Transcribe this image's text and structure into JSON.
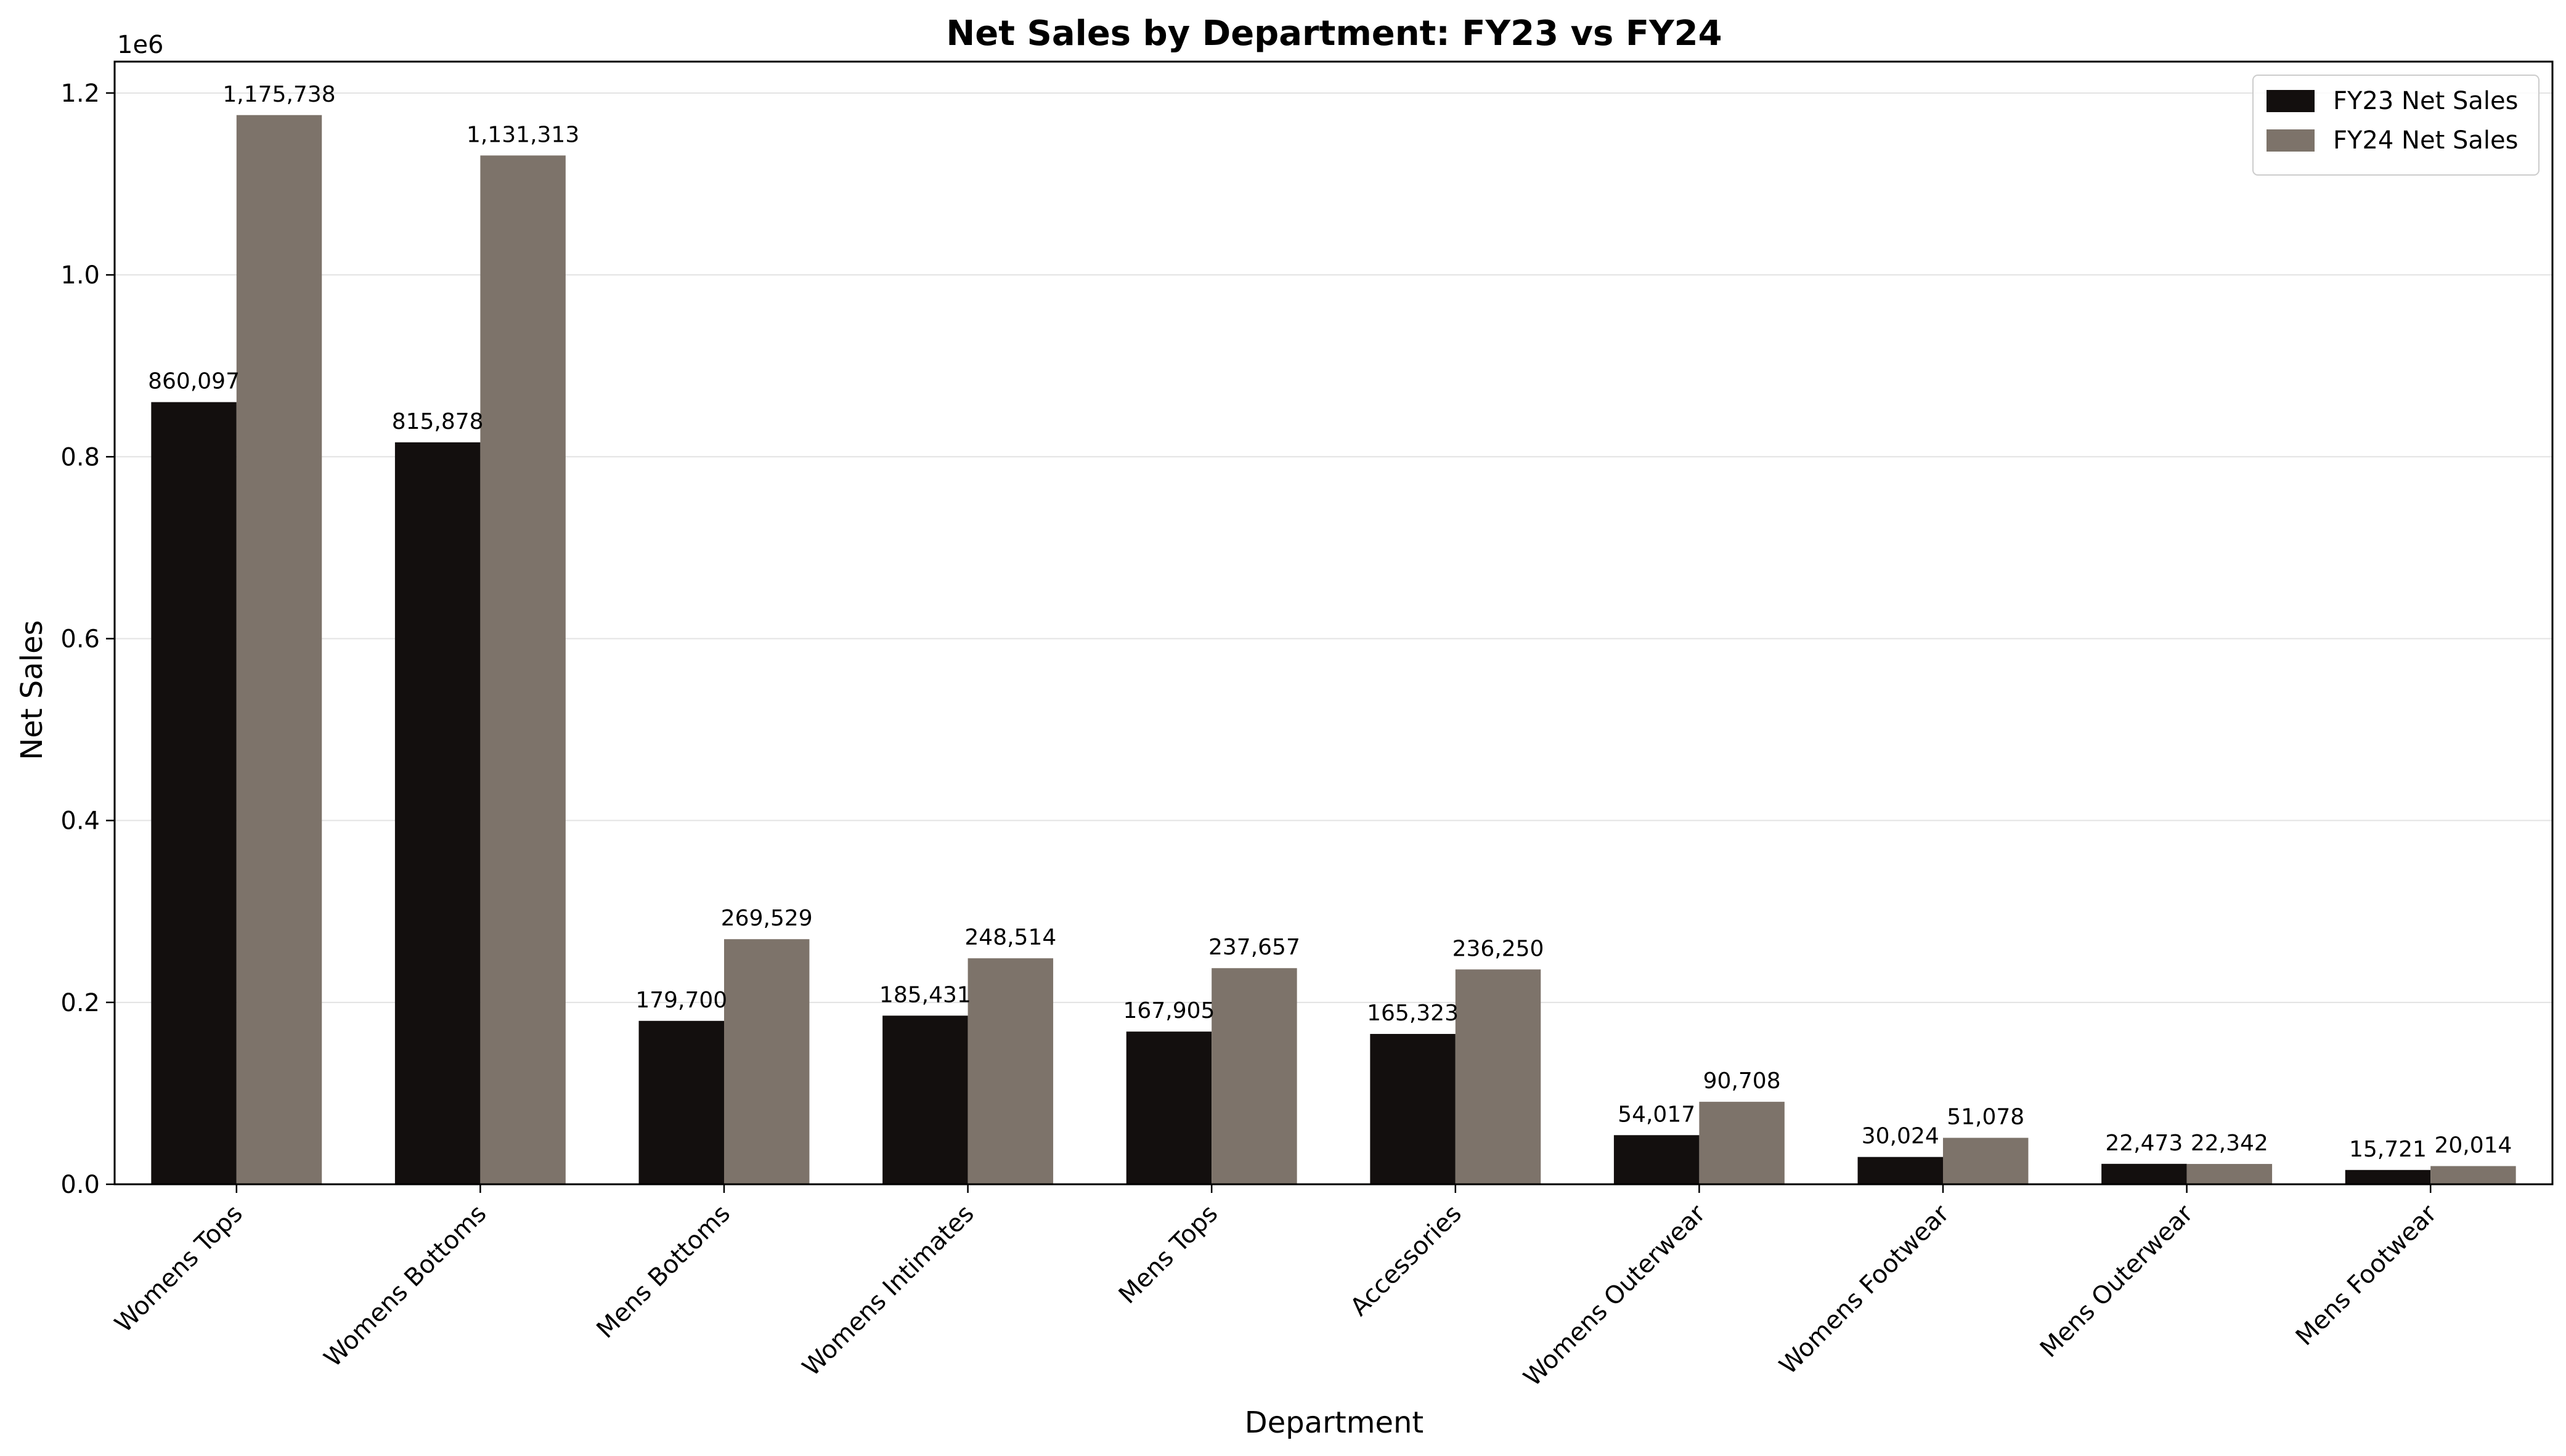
{
  "chart_data": {
    "type": "bar",
    "title": "Net Sales by Department: FY23 vs FY24",
    "xlabel": "Department",
    "ylabel": "Net Sales",
    "y_offset_text": "1e6",
    "ylim": [
      0,
      1234525
    ],
    "y_ticks": [
      0,
      200000,
      400000,
      600000,
      800000,
      1000000,
      1200000
    ],
    "y_tick_labels": [
      "0.0",
      "0.2",
      "0.4",
      "0.6",
      "0.8",
      "1.0",
      "1.2"
    ],
    "grid": "y",
    "legend_position": "top-right",
    "categories": [
      "Womens Tops",
      "Womens Bottoms",
      "Mens Bottoms",
      "Womens Intimates",
      "Mens Tops",
      "Accessories",
      "Womens Outerwear",
      "Womens Footwear",
      "Mens Outerwear",
      "Mens Footwear"
    ],
    "series": [
      {
        "name": "FY23 Net Sales",
        "color": "#130f0e",
        "values": [
          860097,
          815878,
          179700,
          185431,
          167905,
          165323,
          54017,
          30024,
          22473,
          15721
        ],
        "labels": [
          "860,097",
          "815,878",
          "179,700",
          "185,431",
          "167,905",
          "165,323",
          "54,017",
          "30,024",
          "22,473",
          "15,721"
        ]
      },
      {
        "name": "FY24 Net Sales",
        "color": "#7d736a",
        "values": [
          1175738,
          1131313,
          269529,
          248514,
          237657,
          236250,
          90708,
          51078,
          22342,
          20014
        ],
        "labels": [
          "1,175,738",
          "1,131,313",
          "269,529",
          "248,514",
          "237,657",
          "236,250",
          "90,708",
          "51,078",
          "22,342",
          "20,014"
        ]
      }
    ]
  }
}
